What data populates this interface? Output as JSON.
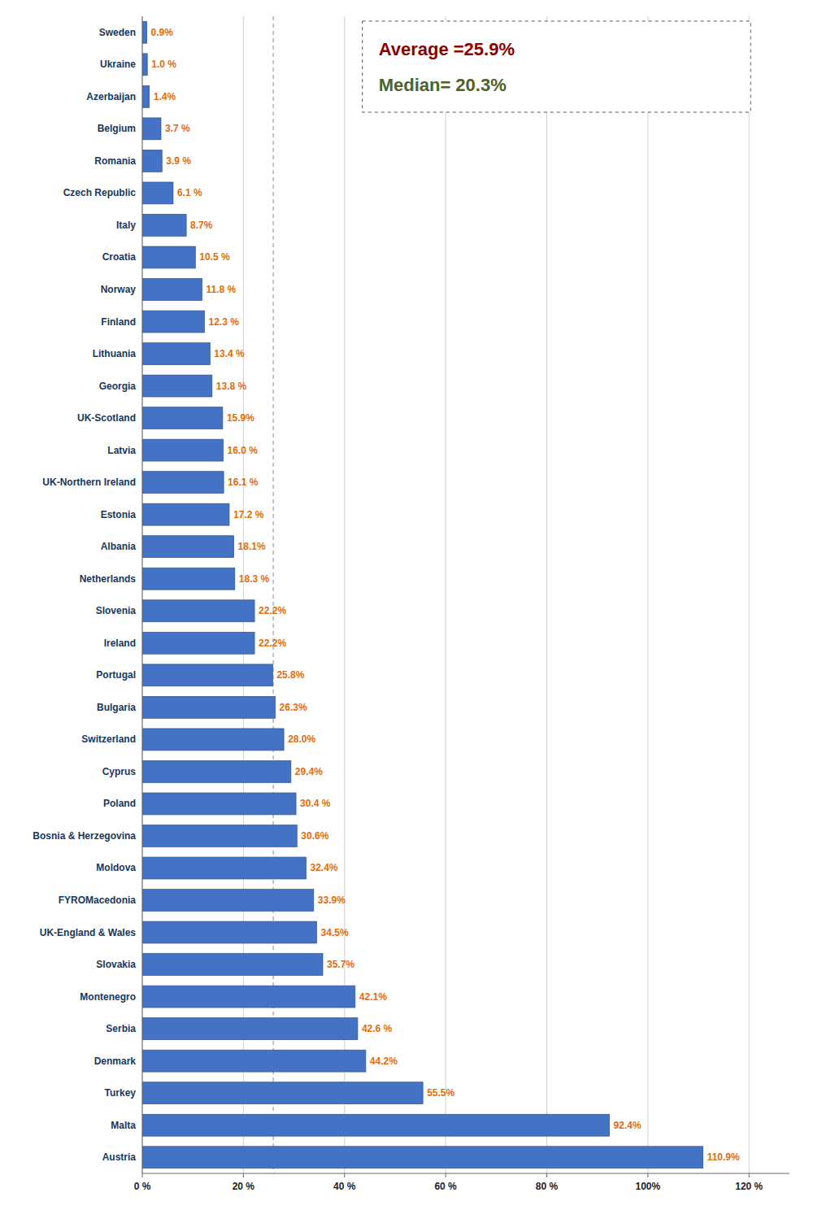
{
  "chart_data": {
    "type": "bar",
    "orientation": "horizontal",
    "categories": [
      "Sweden",
      "Ukraine",
      "Azerbaijan",
      "Belgium",
      "Romania",
      "Czech Republic",
      "Italy",
      "Croatia",
      "Norway",
      "Finland",
      "Lithuania",
      "Georgia",
      "UK-Scotland",
      "Latvia",
      "UK-Northern Ireland",
      "Estonia",
      "Albania",
      "Netherlands",
      "Slovenia",
      "Ireland",
      "Portugal",
      "Bulgaria",
      "Switzerland",
      "Cyprus",
      "Poland",
      "Bosnia & Herzegovina",
      "Moldova",
      "FYROMacedonia",
      "UK-England & Wales",
      "Slovakia",
      "Montenegro",
      "Serbia",
      "Denmark",
      "Turkey",
      "Malta",
      "Austria"
    ],
    "values": [
      0.9,
      1.0,
      1.4,
      3.7,
      3.9,
      6.1,
      8.7,
      10.5,
      11.8,
      12.3,
      13.4,
      13.8,
      15.9,
      16.0,
      16.1,
      17.2,
      18.1,
      18.3,
      22.2,
      22.2,
      25.8,
      26.3,
      28.0,
      29.4,
      30.4,
      30.6,
      32.4,
      33.9,
      34.5,
      35.7,
      42.1,
      42.6,
      44.2,
      55.5,
      92.4,
      110.9
    ],
    "value_labels": [
      "0.9%",
      "1.0 %",
      "1.4%",
      "3.7 %",
      "3.9 %",
      "6.1 %",
      "8.7%",
      "10.5 %",
      "11.8 %",
      "12.3 %",
      "13.4 %",
      "13.8 %",
      "15.9%",
      "16.0 %",
      "16.1 %",
      "17.2 %",
      "18.1%",
      "18.3 %",
      "22.2%",
      "22.2%",
      "25.8%",
      "26.3%",
      "28.0%",
      "29.4%",
      "30.4 %",
      "30.6%",
      "32.4%",
      "33.9%",
      "34.5%",
      "35.7%",
      "42.1%",
      "42.6 %",
      "44.2%",
      "55.5%",
      "92.4%",
      "110.9%"
    ],
    "data_labels": true,
    "color": "#4472C4",
    "xlim": [
      0,
      128
    ],
    "xticks": [
      {
        "value": 0,
        "label": "0 %"
      },
      {
        "value": 20,
        "label": "20 %"
      },
      {
        "value": 40,
        "label": "40 %"
      },
      {
        "value": 60,
        "label": "60 %"
      },
      {
        "value": 80,
        "label": "80 %"
      },
      {
        "value": 100,
        "label": "100%"
      },
      {
        "value": 120,
        "label": "120 %"
      }
    ],
    "grid": true,
    "average": 25.9,
    "annotations": [
      {
        "text": "Average =25.9%",
        "color": "#8B0000"
      },
      {
        "text": "Median= 20.3%",
        "color": "#4F6228"
      }
    ]
  }
}
